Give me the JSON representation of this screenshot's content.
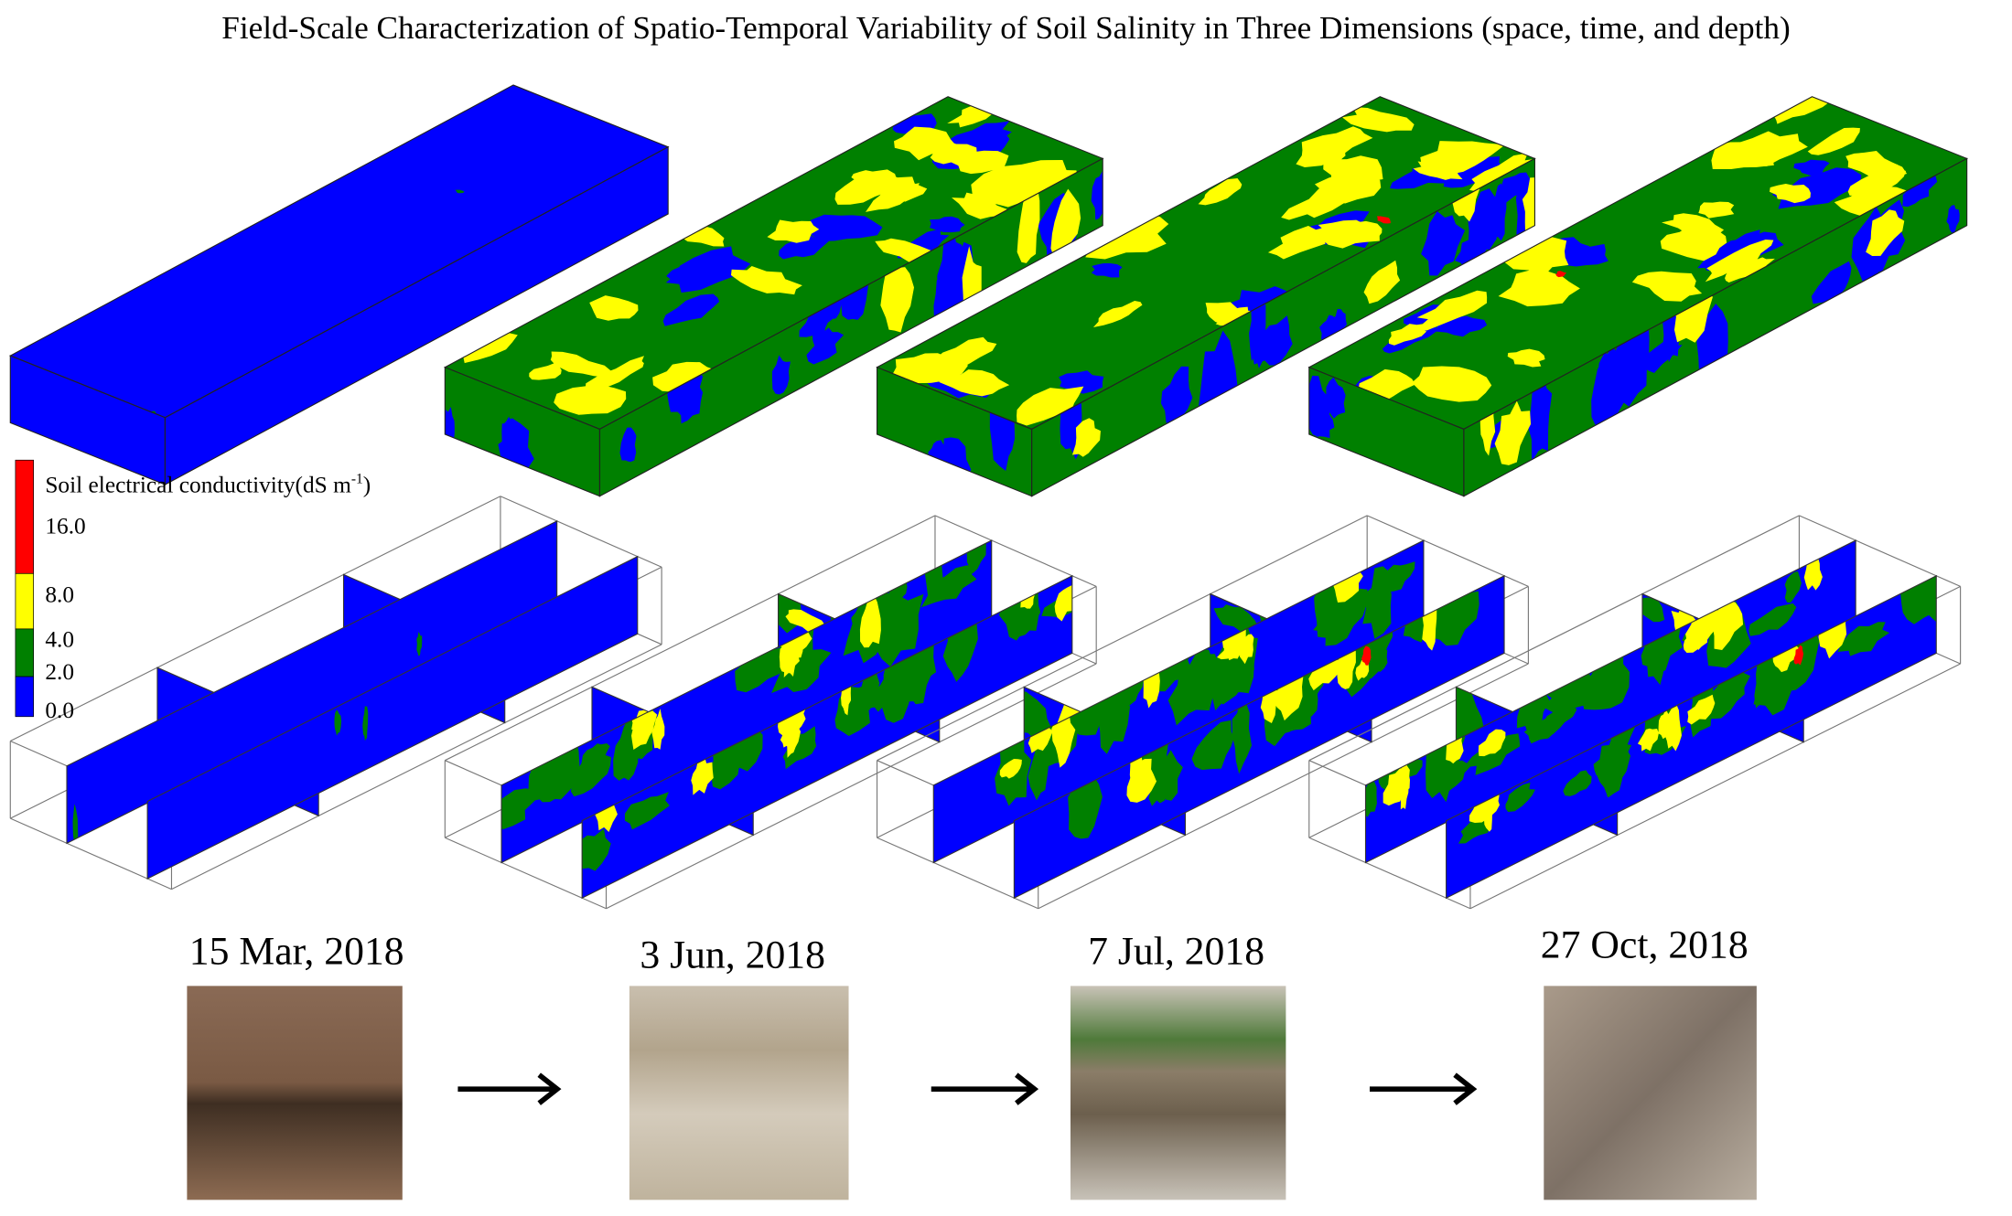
{
  "title": "Field-Scale Characterization of Spatio-Temporal Variability of Soil Salinity in Three Dimensions (space, time, and depth)",
  "legend": {
    "title": "Soil electrical conductivity(dS m",
    "title_sup": "-1",
    "title_end": ")",
    "labels": [
      "16.0",
      "8.0",
      "4.0",
      "2.0",
      "0.0"
    ]
  },
  "dates": [
    "15 Mar, 2018",
    "3 Jun, 2018",
    "7 Jul, 2018",
    "27 Oct, 2018"
  ]
}
